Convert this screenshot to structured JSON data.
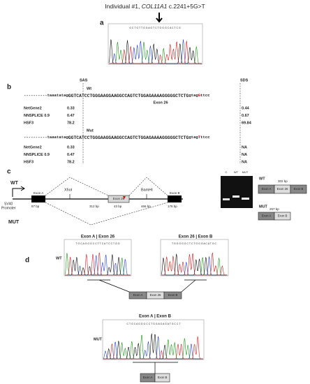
{
  "title": {
    "prefix": "Individual #1, ",
    "gene": "COL11A1",
    "variant": " c.2241+5G>T"
  },
  "panels": [
    "a",
    "b",
    "c",
    "d"
  ],
  "a": {
    "bases": "G C T G T T G G A G T C T G G G C A C T C G"
  },
  "b": {
    "sas": "SAS",
    "sds": "SDS",
    "exon": "Exon 26",
    "wt": {
      "label": "Wt",
      "intron": "----------taaatatag",
      "exon": "GGTCATCCTGGGAAGGAAGGCCAGTCTGGAGAAAAGGGGGCTCTG",
      "donor_a": "gtag",
      "donor_var": "G",
      "donor_b": "ttcc",
      "scores": [
        {
          "tool": "NetGene2",
          "sas": 0.33,
          "sds": 0.44
        },
        {
          "tool": "NNSPLICE 0.9",
          "sas": 0.47,
          "sds": 0.67
        },
        {
          "tool": "HSF3",
          "sas": 78.2,
          "sds": 69.84
        }
      ]
    },
    "mut": {
      "label": "Mut",
      "intron": "----------taaatatag",
      "exon": "GGTCATCCTGGGAAGGAAGGCCAGTCTGGAGAAAAGGGGGCTCTG",
      "donor_a": "gtag",
      "donor_var": "T",
      "donor_b": "ttcc",
      "scores": [
        {
          "tool": "NetGene2",
          "sas": 0.33,
          "sds": "NA"
        },
        {
          "tool": "NNSPLICE 0.9",
          "sas": 0.47,
          "sds": "NA"
        },
        {
          "tool": "HSF3",
          "sas": 78.2,
          "sds": "NA"
        }
      ]
    }
  },
  "c": {
    "wt": "WT",
    "mut": "MUT",
    "promoter": [
      "SV40",
      "Promoter"
    ],
    "exon_a": "Exon A",
    "exon_26": "Exon 26",
    "exon_b": "Exon B",
    "xhoi": "XhoI",
    "bamhi": "BamHI",
    "sizes": [
      "87 bp",
      "312 bp",
      "43 bp",
      "466 bp",
      "176 bp"
    ],
    "gel_lanes": [
      "C",
      "WT",
      "MUT"
    ],
    "wt_product": {
      "label": "WT",
      "size": "302 bp",
      "exons": [
        "Exon A",
        "Exon 26",
        "Exon B"
      ]
    },
    "mut_product": {
      "label": "MUT",
      "size": "257 bp",
      "exons": [
        "Exon A",
        "Exon B"
      ]
    }
  },
  "d": {
    "wt": "WT",
    "mut": "MUT",
    "junction_1": {
      "title": "Exon A | Exon 26",
      "bases": "T G C A G G G C C T T C A T C C T G G"
    },
    "junction_2": {
      "title": "Exon 26 | Exon B",
      "bases": "T G G G G G C T C T G G G A C A T G C"
    },
    "junction_3": {
      "title": "Exon A | Exon B",
      "bases": "C T G C A G G G C C T G G A G A G A T G C C T"
    },
    "wt_exons": [
      "Exon A",
      "Exon 26",
      "Exon B"
    ],
    "mut_exons": [
      "Exon A",
      "Exon B"
    ]
  }
}
